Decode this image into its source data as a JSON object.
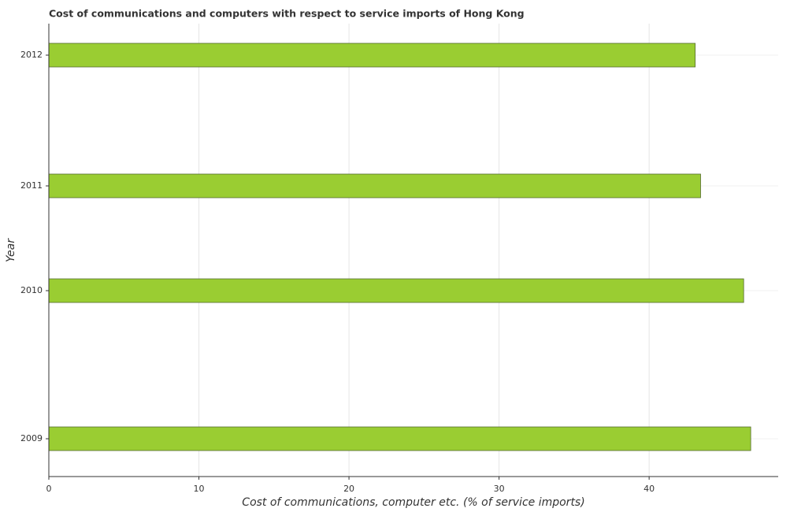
{
  "chart_data": {
    "type": "barh",
    "title": "Cost of communications and computers with respect to service imports of Hong Kong",
    "xlabel": "Cost of communications, computer etc. (% of service imports)",
    "ylabel": "Year",
    "categories": [
      "2009",
      "2010",
      "2011",
      "2012"
    ],
    "values": [
      46.77,
      46.3,
      43.43,
      43.07
    ],
    "color": "#9acd32",
    "xlim": [
      0,
      48.6
    ],
    "xticks": [
      0,
      10,
      20,
      30,
      40
    ],
    "grid": true
  }
}
